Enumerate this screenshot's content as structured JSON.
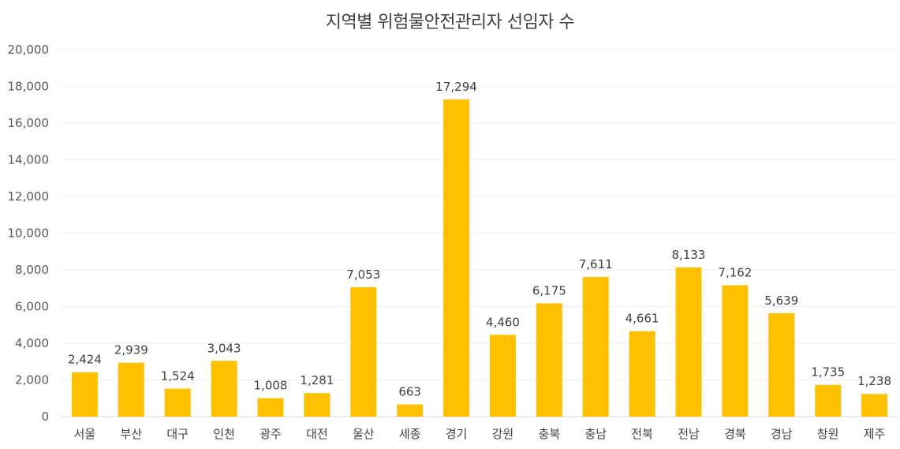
{
  "chart_data": {
    "type": "bar",
    "title": "지역별 위험물안전관리자 선임자 수",
    "xlabel": "",
    "ylabel": "",
    "ylim": [
      0,
      20000
    ],
    "yticks": [
      0,
      2000,
      4000,
      6000,
      8000,
      10000,
      12000,
      14000,
      16000,
      18000,
      20000
    ],
    "ytick_labels": [
      "0",
      "2,000",
      "4,000",
      "6,000",
      "8,000",
      "10,000",
      "12,000",
      "14,000",
      "16,000",
      "18,000",
      "20,000"
    ],
    "grid": true,
    "legend": "none",
    "bar_color": "#FFC000",
    "categories": [
      "서울",
      "부산",
      "대구",
      "인천",
      "광주",
      "대전",
      "울산",
      "세종",
      "경기",
      "강원",
      "충북",
      "충남",
      "전북",
      "전남",
      "경북",
      "경남",
      "창원",
      "제주"
    ],
    "values": [
      2424,
      2939,
      1524,
      3043,
      1008,
      1281,
      7053,
      663,
      17294,
      4460,
      6175,
      7611,
      4661,
      8133,
      7162,
      5639,
      1735,
      1238
    ],
    "value_labels": [
      "2,424",
      "2,939",
      "1,524",
      "3,043",
      "1,008",
      "1,281",
      "7,053",
      "663",
      "17,294",
      "4,460",
      "6,175",
      "7,611",
      "4,661",
      "8,133",
      "7,162",
      "5,639",
      "1,735",
      "1,238"
    ]
  }
}
